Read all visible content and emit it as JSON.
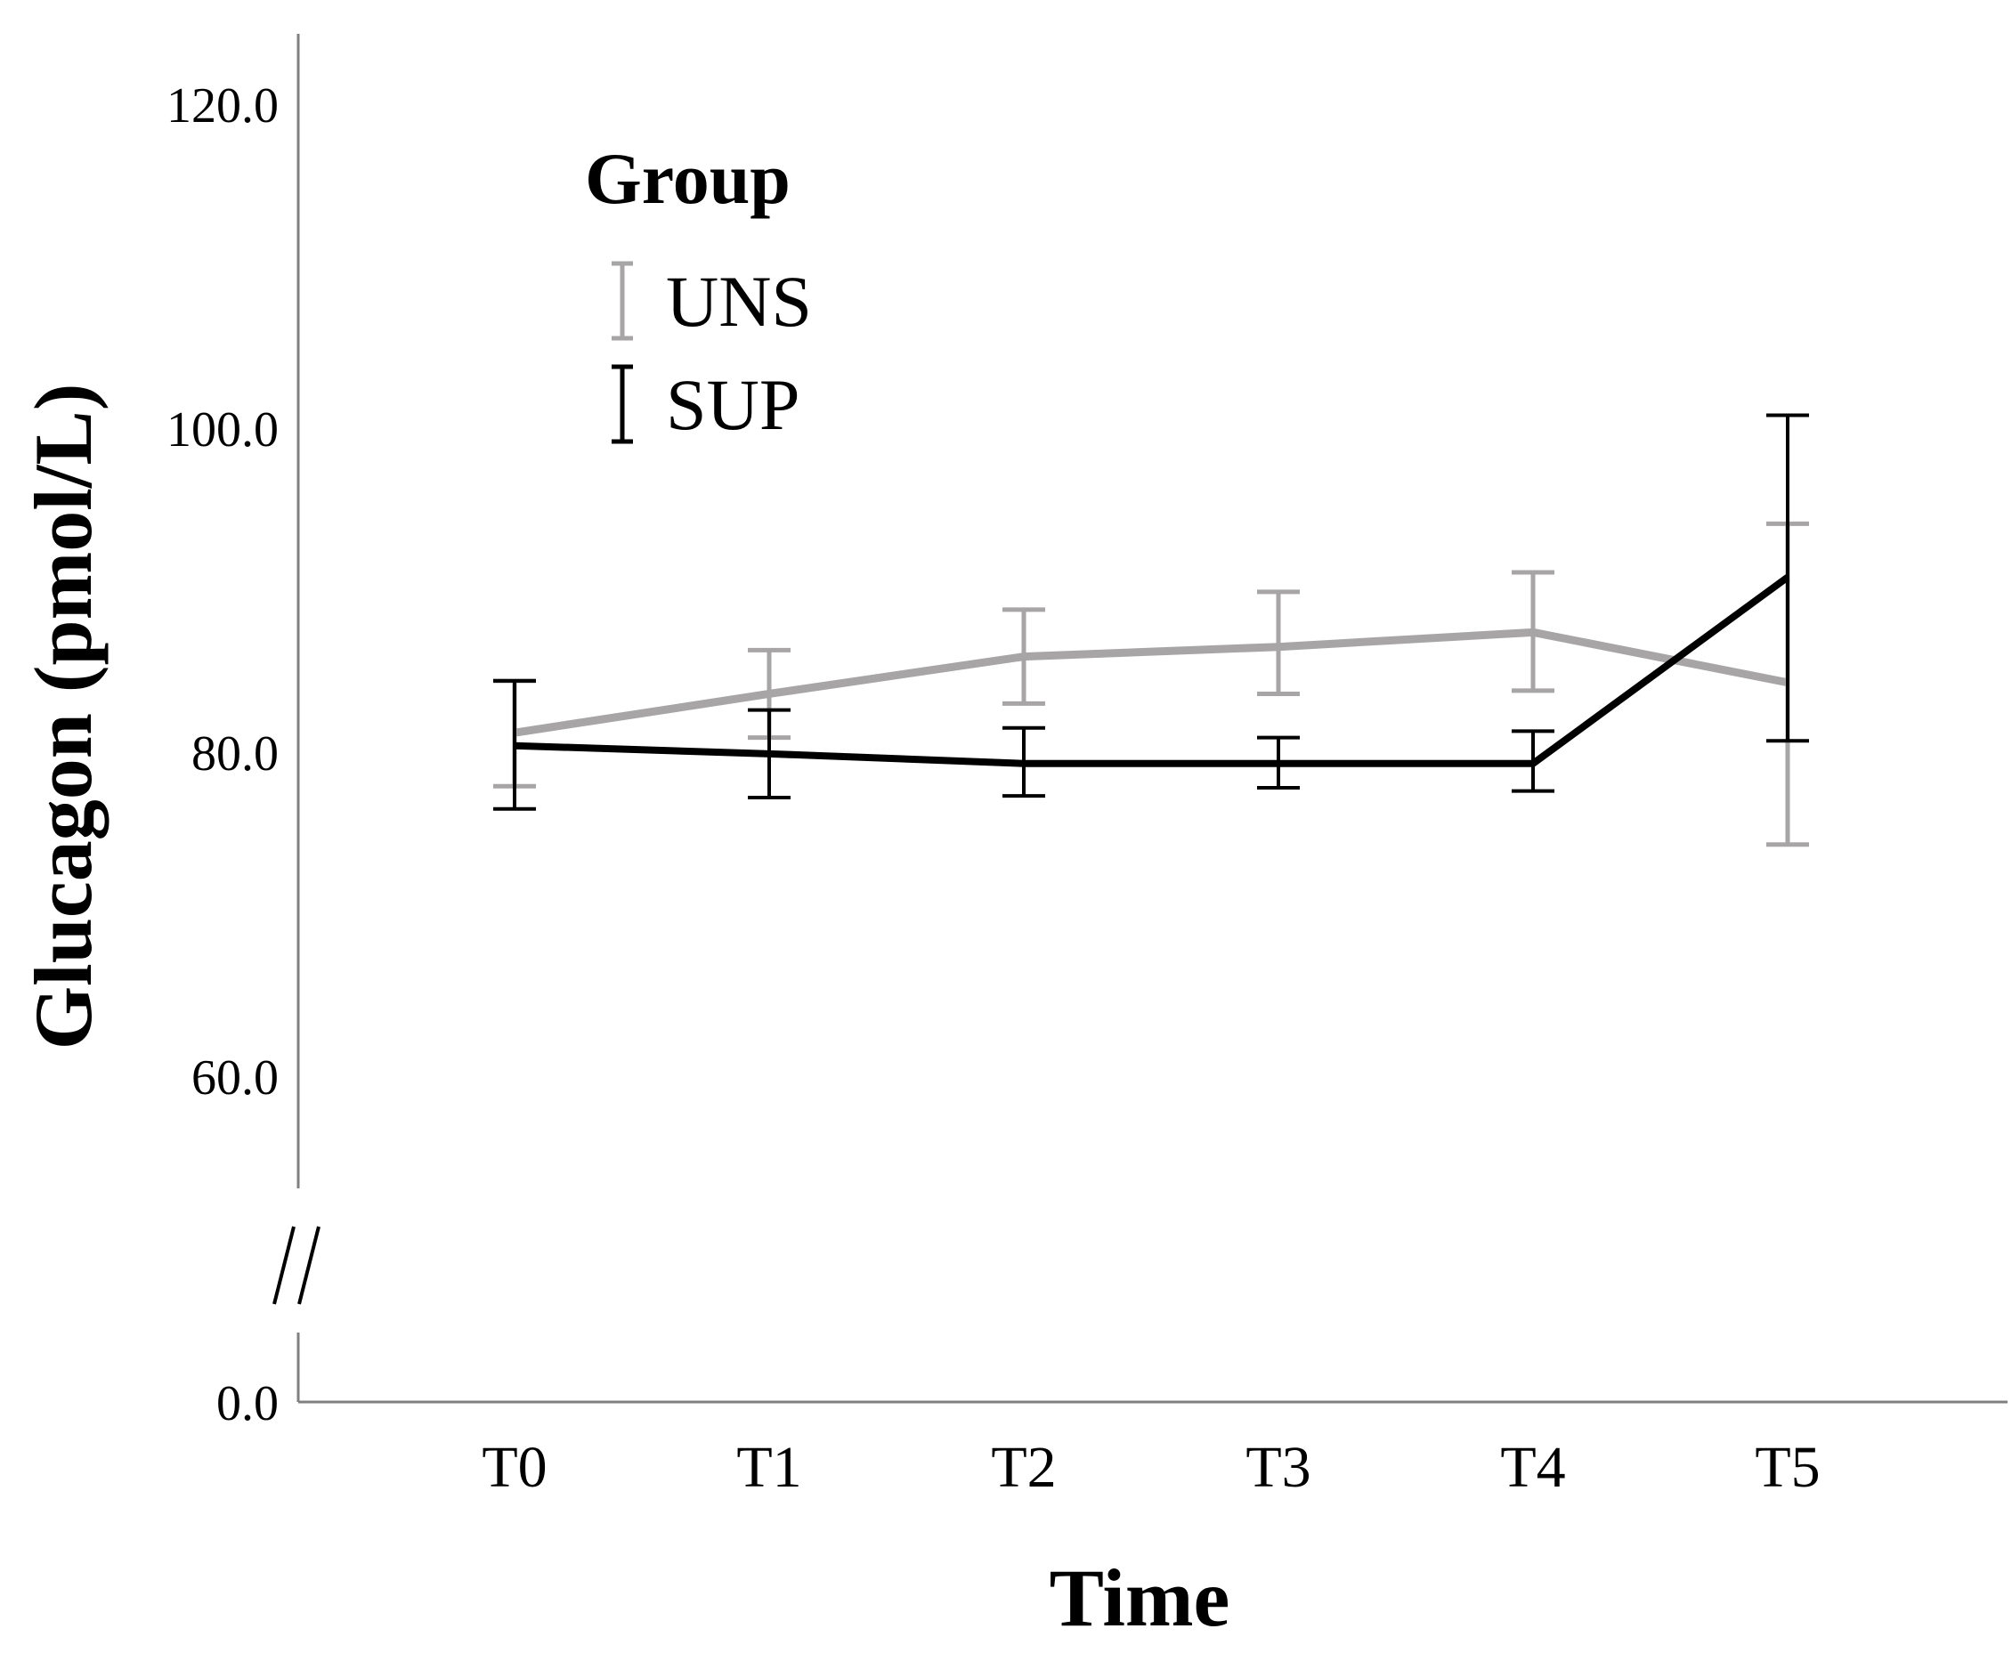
{
  "chart_data": {
    "type": "line",
    "title": "",
    "xlabel": "Time",
    "ylabel": "Glucagon (pmol/L)",
    "categories": [
      "T0",
      "T1",
      "T2",
      "T3",
      "T4",
      "T5"
    ],
    "y_ticks": [
      {
        "value": 0,
        "label": "0.0"
      },
      {
        "value": 60,
        "label": "60.0"
      },
      {
        "value": 80,
        "label": "80.0"
      },
      {
        "value": 100,
        "label": "100.0"
      },
      {
        "value": 120,
        "label": "120.0"
      }
    ],
    "ylim": [
      53,
      124
    ],
    "y_axis_break": {
      "lower_shown": 0,
      "break_symbol": "//"
    },
    "error_bars": true,
    "legend": {
      "title": "Group",
      "position": "top-left"
    },
    "series": [
      {
        "name": "UNS",
        "color": "#a7a5a6",
        "values": [
          81.2,
          83.6,
          85.9,
          86.5,
          87.4,
          84.3
        ],
        "lower": [
          77.9,
          80.9,
          83.0,
          83.6,
          83.8,
          74.3
        ],
        "upper": [
          84.4,
          86.3,
          88.8,
          89.9,
          91.1,
          94.1
        ]
      },
      {
        "name": "SUP",
        "color": "#000000",
        "values": [
          80.4,
          79.9,
          79.3,
          79.3,
          79.3,
          90.8
        ],
        "lower": [
          76.5,
          77.2,
          77.3,
          77.8,
          77.6,
          80.7
        ],
        "upper": [
          84.4,
          82.6,
          81.5,
          80.9,
          81.3,
          100.8
        ]
      }
    ]
  }
}
